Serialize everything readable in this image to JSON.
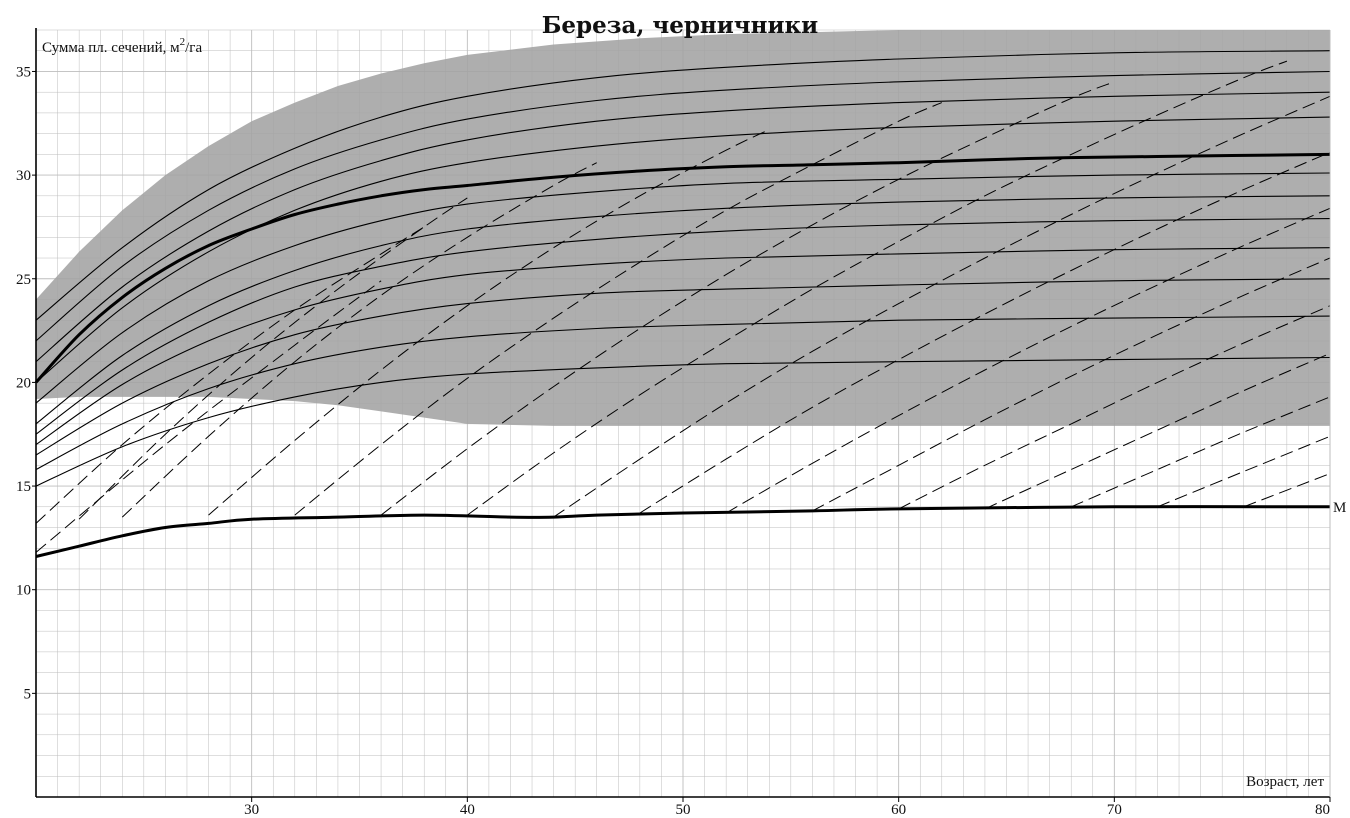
{
  "chart_data": {
    "type": "line",
    "title": "Береза, черничники",
    "ylabel": "Сумма пл. сечений, м²/га",
    "ylabel_main": "Сумма пл. сечений, м",
    "ylabel_sup": "2",
    "ylabel_tail": "/га",
    "xlabel": "Возраст, лет",
    "xlim": [
      20,
      80
    ],
    "ylim": [
      0,
      37
    ],
    "x_ticks": [
      30,
      40,
      50,
      60,
      70,
      80
    ],
    "y_ticks": [
      5,
      10,
      15,
      20,
      25,
      30,
      35
    ],
    "grid": true,
    "colors": {
      "band": "#a3a3a3",
      "line": "#000000",
      "grid": "#bdbdbd"
    },
    "band": {
      "x": [
        20,
        22,
        24,
        26,
        28,
        30,
        32,
        34,
        36,
        38,
        40,
        44,
        48,
        52,
        56,
        60,
        66,
        72,
        80
      ],
      "upper": [
        24.0,
        26.3,
        28.3,
        30.0,
        31.4,
        32.6,
        33.5,
        34.3,
        34.9,
        35.4,
        35.8,
        36.3,
        36.6,
        36.8,
        36.9,
        37.0,
        37.0,
        37.0,
        37.0
      ],
      "lower": [
        19.2,
        19.3,
        19.3,
        19.3,
        19.3,
        19.2,
        19.1,
        18.9,
        18.6,
        18.3,
        18.0,
        17.9,
        17.9,
        17.9,
        17.9,
        17.9,
        17.9,
        17.9,
        17.9
      ]
    },
    "series": [
      {
        "x": [
          20,
          24,
          28,
          32,
          36,
          40,
          46,
          52,
          60,
          70,
          80
        ],
        "values": [
          23.0,
          26.5,
          29.3,
          31.3,
          32.8,
          33.8,
          34.7,
          35.2,
          35.6,
          35.9,
          36.0
        ]
      },
      {
        "x": [
          20,
          24,
          28,
          32,
          36,
          40,
          46,
          52,
          60,
          70,
          80
        ],
        "values": [
          22.0,
          25.6,
          28.3,
          30.3,
          31.7,
          32.7,
          33.6,
          34.1,
          34.5,
          34.8,
          35.0
        ]
      },
      {
        "x": [
          20,
          24,
          28,
          32,
          36,
          40,
          46,
          52,
          60,
          70,
          80
        ],
        "values": [
          21.0,
          24.6,
          27.3,
          29.3,
          30.7,
          31.7,
          32.6,
          33.1,
          33.5,
          33.8,
          34.0
        ]
      },
      {
        "x": [
          20,
          24,
          28,
          32,
          36,
          40,
          46,
          52,
          60,
          70,
          80
        ],
        "values": [
          20.0,
          23.6,
          26.3,
          28.3,
          29.7,
          30.6,
          31.4,
          31.9,
          32.3,
          32.6,
          32.8
        ]
      },
      {
        "name": "",
        "emphasis": true,
        "x": [
          20,
          22,
          24,
          26,
          28,
          30,
          32,
          34,
          36,
          38,
          40,
          44,
          48,
          52,
          56,
          60,
          66,
          72,
          80
        ],
        "values": [
          20.0,
          22.3,
          24.1,
          25.5,
          26.6,
          27.4,
          28.1,
          28.6,
          29.0,
          29.3,
          29.5,
          29.9,
          30.2,
          30.4,
          30.5,
          30.6,
          30.8,
          30.9,
          31.0
        ]
      },
      {
        "x": [
          20,
          24,
          28,
          32,
          36,
          40,
          46,
          52,
          60,
          70,
          80
        ],
        "values": [
          19.0,
          22.4,
          24.9,
          26.6,
          27.8,
          28.6,
          29.2,
          29.6,
          29.8,
          30.0,
          30.1
        ]
      },
      {
        "x": [
          20,
          24,
          28,
          32,
          36,
          40,
          46,
          52,
          60,
          70,
          80
        ],
        "values": [
          18.0,
          21.3,
          23.7,
          25.4,
          26.6,
          27.4,
          28.0,
          28.4,
          28.7,
          28.9,
          29.0
        ]
      },
      {
        "x": [
          20,
          24,
          28,
          32,
          36,
          40,
          46,
          52,
          60,
          70,
          80
        ],
        "values": [
          17.5,
          20.6,
          22.9,
          24.6,
          25.6,
          26.3,
          26.9,
          27.3,
          27.6,
          27.8,
          27.9
        ]
      },
      {
        "x": [
          20,
          24,
          28,
          32,
          36,
          40,
          46,
          52,
          60,
          70,
          80
        ],
        "values": [
          17.0,
          19.9,
          22.0,
          23.5,
          24.5,
          25.2,
          25.7,
          26.0,
          26.2,
          26.4,
          26.5
        ]
      },
      {
        "x": [
          20,
          24,
          28,
          32,
          36,
          40,
          46,
          52,
          60,
          70,
          80
        ],
        "values": [
          16.5,
          19.0,
          20.9,
          22.3,
          23.2,
          23.8,
          24.3,
          24.5,
          24.7,
          24.9,
          25.0
        ]
      },
      {
        "x": [
          20,
          24,
          28,
          32,
          36,
          40,
          46,
          52,
          60,
          70,
          80
        ],
        "values": [
          15.8,
          18.0,
          19.7,
          20.9,
          21.7,
          22.2,
          22.6,
          22.8,
          23.0,
          23.1,
          23.2
        ]
      },
      {
        "x": [
          20,
          24,
          28,
          32,
          36,
          40,
          46,
          52,
          60,
          70,
          80
        ],
        "values": [
          15.0,
          16.9,
          18.3,
          19.3,
          20.0,
          20.4,
          20.7,
          20.9,
          21.0,
          21.1,
          21.2
        ]
      },
      {
        "name": "М",
        "emphasis": true,
        "x": [
          20,
          22,
          24,
          26,
          28,
          30,
          34,
          38,
          42,
          44,
          46,
          50,
          56,
          60,
          70,
          80
        ],
        "values": [
          11.6,
          12.1,
          12.6,
          13.0,
          13.2,
          13.4,
          13.5,
          13.6,
          13.5,
          13.5,
          13.6,
          13.7,
          13.8,
          13.9,
          14.0,
          14.0
        ]
      }
    ],
    "dashed_lines": [
      [
        [
          20,
          11.8
        ],
        [
          26,
          17.0
        ],
        [
          32,
          21.8
        ],
        [
          36,
          24.9
        ]
      ],
      [
        [
          20,
          13.2
        ],
        [
          24,
          17.0
        ],
        [
          28,
          20.4
        ],
        [
          32,
          23.5
        ],
        [
          36,
          26.2
        ],
        [
          38,
          27.5
        ]
      ],
      [
        [
          22,
          13.4
        ],
        [
          26,
          17.5
        ],
        [
          30,
          21.2
        ],
        [
          34,
          24.5
        ],
        [
          38,
          27.5
        ],
        [
          40,
          28.9
        ]
      ],
      [
        [
          24,
          13.5
        ],
        [
          28,
          17.4
        ],
        [
          32,
          21.0
        ],
        [
          36,
          24.2
        ],
        [
          40,
          27.0
        ],
        [
          44,
          29.5
        ],
        [
          46,
          30.6
        ]
      ],
      [
        [
          28,
          13.6
        ],
        [
          32,
          17.2
        ],
        [
          36,
          20.6
        ],
        [
          40,
          23.7
        ],
        [
          44,
          26.5
        ],
        [
          48,
          29.0
        ],
        [
          52,
          31.2
        ],
        [
          54,
          32.2
        ]
      ],
      [
        [
          32,
          13.6
        ],
        [
          36,
          17.0
        ],
        [
          40,
          20.2
        ],
        [
          44,
          23.1
        ],
        [
          48,
          25.8
        ],
        [
          52,
          28.3
        ],
        [
          56,
          30.5
        ],
        [
          60,
          32.6
        ],
        [
          62,
          33.5
        ]
      ],
      [
        [
          36,
          13.6
        ],
        [
          40,
          16.8
        ],
        [
          44,
          19.8
        ],
        [
          48,
          22.6
        ],
        [
          52,
          25.2
        ],
        [
          56,
          27.6
        ],
        [
          60,
          29.8
        ],
        [
          64,
          31.8
        ],
        [
          68,
          33.7
        ],
        [
          70,
          34.5
        ]
      ],
      [
        [
          40,
          13.6
        ],
        [
          44,
          16.6
        ],
        [
          48,
          19.4
        ],
        [
          52,
          22.0
        ],
        [
          56,
          24.5
        ],
        [
          60,
          26.8
        ],
        [
          64,
          29.0
        ],
        [
          68,
          31.0
        ],
        [
          72,
          32.9
        ],
        [
          76,
          34.7
        ],
        [
          78,
          35.5
        ]
      ],
      [
        [
          44,
          13.5
        ],
        [
          48,
          16.3
        ],
        [
          52,
          19.0
        ],
        [
          56,
          21.5
        ],
        [
          60,
          23.8
        ],
        [
          64,
          26.0
        ],
        [
          68,
          28.1
        ],
        [
          72,
          30.1
        ],
        [
          76,
          32.0
        ],
        [
          80,
          33.8
        ]
      ],
      [
        [
          48,
          13.7
        ],
        [
          52,
          16.3
        ],
        [
          56,
          18.8
        ],
        [
          60,
          21.1
        ],
        [
          64,
          23.3
        ],
        [
          68,
          25.4
        ],
        [
          72,
          27.4
        ],
        [
          76,
          29.3
        ],
        [
          80,
          31.1
        ]
      ],
      [
        [
          52,
          13.7
        ],
        [
          56,
          16.1
        ],
        [
          60,
          18.4
        ],
        [
          64,
          20.6
        ],
        [
          68,
          22.7
        ],
        [
          72,
          24.7
        ],
        [
          76,
          26.6
        ],
        [
          80,
          28.4
        ]
      ],
      [
        [
          56,
          13.8
        ],
        [
          60,
          16.0
        ],
        [
          64,
          18.2
        ],
        [
          68,
          20.3
        ],
        [
          72,
          22.3
        ],
        [
          76,
          24.2
        ],
        [
          80,
          26.0
        ]
      ],
      [
        [
          60,
          13.9
        ],
        [
          64,
          16.0
        ],
        [
          68,
          18.0
        ],
        [
          72,
          20.0
        ],
        [
          76,
          21.9
        ],
        [
          80,
          23.7
        ]
      ],
      [
        [
          64,
          13.9
        ],
        [
          68,
          15.8
        ],
        [
          72,
          17.7
        ],
        [
          76,
          19.6
        ],
        [
          80,
          21.4
        ]
      ],
      [
        [
          68,
          14.0
        ],
        [
          72,
          15.8
        ],
        [
          76,
          17.6
        ],
        [
          80,
          19.3
        ]
      ],
      [
        [
          72,
          14.0
        ],
        [
          76,
          15.7
        ],
        [
          80,
          17.4
        ]
      ],
      [
        [
          76,
          14.0
        ],
        [
          80,
          15.6
        ]
      ]
    ]
  }
}
